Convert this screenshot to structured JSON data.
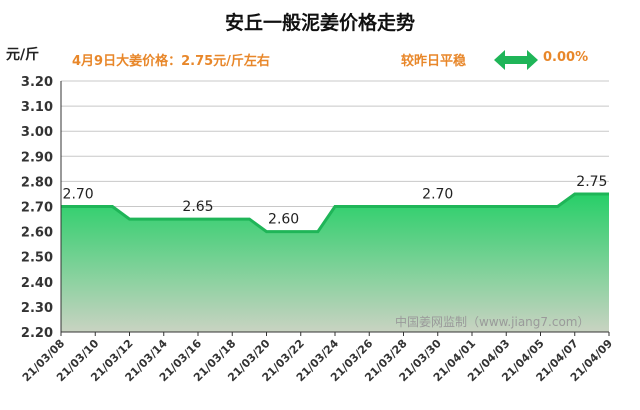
{
  "header": {
    "title": "安丘一般泥姜价格走势",
    "unit": "元/斤",
    "price_note": "4月9日大姜价格：2.75元/斤左右",
    "compare_text": "较昨日平稳",
    "change_value": "0.00%",
    "arrow_icon": "double-arrow-icon",
    "accent_color": "#e8872a",
    "arrow_color": "#1fb558"
  },
  "watermark": "中国姜网监制（www.jiang7.com）",
  "chart_data": {
    "type": "area",
    "title": "安丘一般泥姜价格走势",
    "ylabel": "元/斤",
    "xlabel": "",
    "ylim": [
      2.2,
      3.2
    ],
    "yticks": [
      "3.20",
      "3.10",
      "3.00",
      "2.90",
      "2.80",
      "2.70",
      "2.60",
      "2.50",
      "2.40",
      "2.30",
      "2.20"
    ],
    "x_tick_labels": [
      "21/03/08",
      "21/03/10",
      "21/03/12",
      "21/03/14",
      "21/03/16",
      "21/03/18",
      "21/03/20",
      "21/03/22",
      "21/03/24",
      "21/03/26",
      "21/03/28",
      "21/03/30",
      "21/04/01",
      "21/04/03",
      "21/04/05",
      "21/04/07",
      "21/04/09"
    ],
    "grid": true,
    "series": [
      {
        "x": [
          "21/03/08",
          "21/03/09",
          "21/03/10",
          "21/03/11",
          "21/03/12",
          "21/03/13",
          "21/03/14",
          "21/03/15",
          "21/03/16",
          "21/03/17",
          "21/03/18",
          "21/03/19",
          "21/03/20",
          "21/03/21",
          "21/03/22",
          "21/03/23",
          "21/03/24",
          "21/03/25",
          "21/03/26",
          "21/03/27",
          "21/03/28",
          "21/03/29",
          "21/03/30",
          "21/03/31",
          "21/04/01",
          "21/04/02",
          "21/04/03",
          "21/04/04",
          "21/04/05",
          "21/04/06",
          "21/04/07",
          "21/04/08",
          "21/04/09"
        ],
        "values": [
          2.7,
          2.7,
          2.7,
          2.7,
          2.65,
          2.65,
          2.65,
          2.65,
          2.65,
          2.65,
          2.65,
          2.65,
          2.6,
          2.6,
          2.6,
          2.6,
          2.7,
          2.7,
          2.7,
          2.7,
          2.7,
          2.7,
          2.7,
          2.7,
          2.7,
          2.7,
          2.7,
          2.7,
          2.7,
          2.7,
          2.75,
          2.75,
          2.75
        ]
      }
    ],
    "data_labels": [
      {
        "index": 1,
        "text": "2.70"
      },
      {
        "index": 8,
        "text": "2.65"
      },
      {
        "index": 13,
        "text": "2.60"
      },
      {
        "index": 22,
        "text": "2.70"
      },
      {
        "index": 31,
        "text": "2.75"
      }
    ],
    "line_color": "#1fb558",
    "fill_top_color": "#27cf68",
    "fill_bottom_color": "#c9d3c2"
  }
}
